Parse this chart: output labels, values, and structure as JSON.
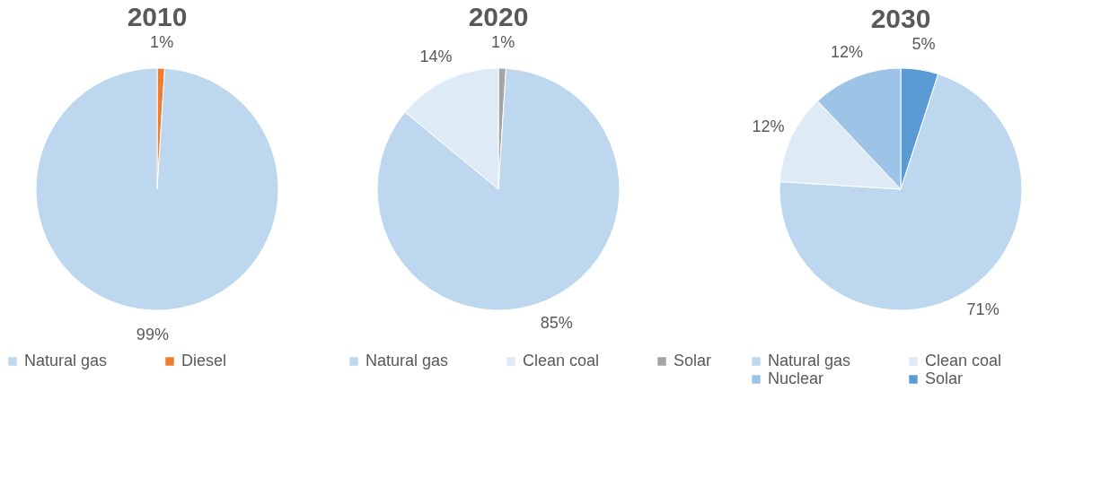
{
  "chart_data": [
    {
      "type": "pie",
      "title": "2010",
      "categories": [
        "Natural gas",
        "Diesel"
      ],
      "values": [
        99,
        1
      ],
      "colors": [
        "#bdd7ee",
        "#ed7d31"
      ],
      "value_labels": [
        "99%",
        "1%"
      ],
      "legend": "bottom"
    },
    {
      "type": "pie",
      "title": "2020",
      "categories": [
        "Natural gas",
        "Clean coal",
        "Solar"
      ],
      "values": [
        85,
        14,
        1
      ],
      "colors": [
        "#bdd7ee",
        "#deebf7",
        "#a5a5a5"
      ],
      "value_labels": [
        "85%",
        "14%",
        "1%"
      ],
      "legend": "bottom"
    },
    {
      "type": "pie",
      "title": "2030",
      "categories": [
        "Natural gas",
        "Clean coal",
        "Nuclear",
        "Solar"
      ],
      "values": [
        71,
        12,
        12,
        5
      ],
      "colors": [
        "#bdd7ee",
        "#deebf7",
        "#9dc3e6",
        "#5b9bd5"
      ],
      "value_labels": [
        "71%",
        "12%",
        "12%",
        "5%"
      ],
      "legend": "bottom"
    }
  ]
}
